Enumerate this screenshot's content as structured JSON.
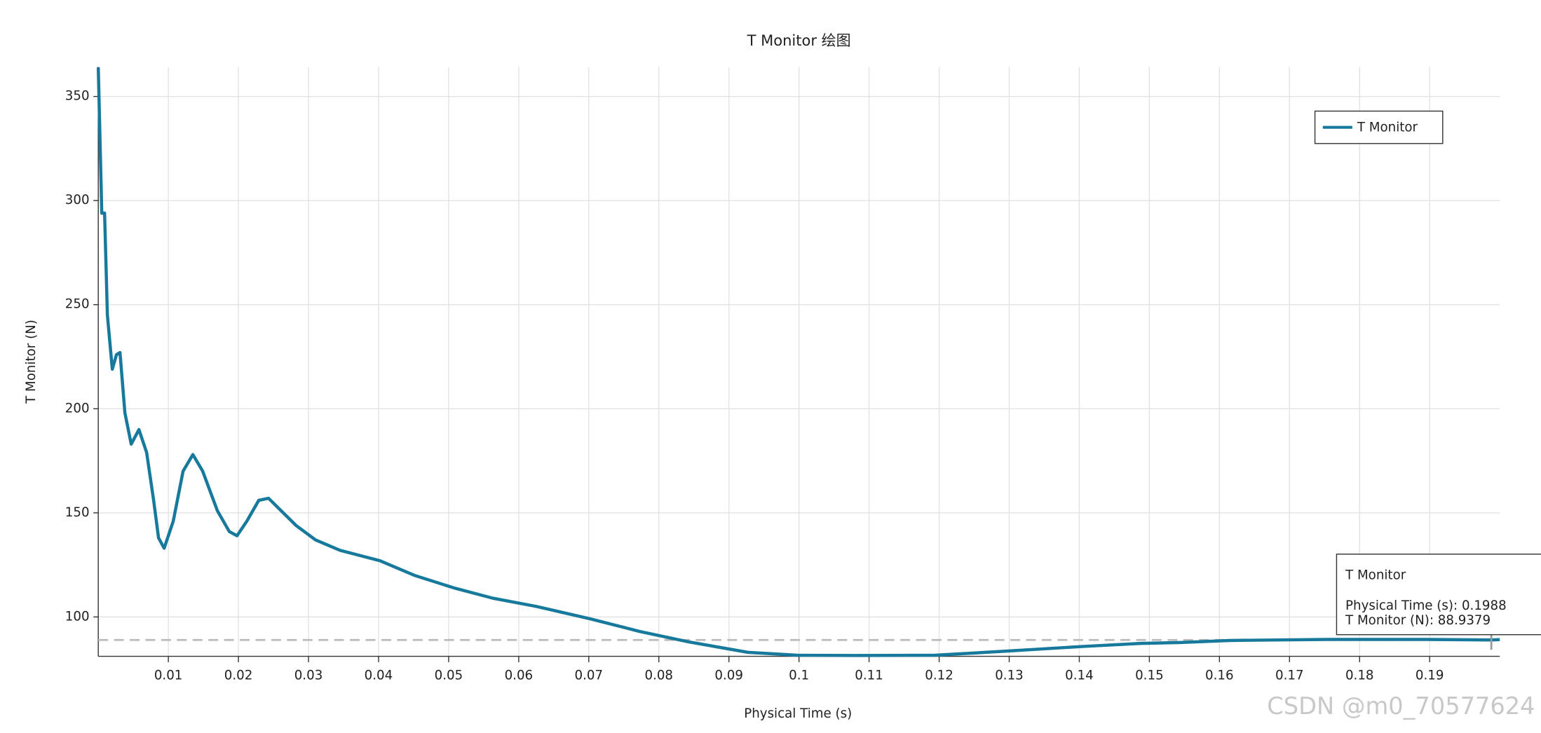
{
  "chart_data": {
    "type": "line",
    "title": "T Monitor 绘图",
    "xlabel": "Physical Time (s)",
    "ylabel": "T Monitor (N)",
    "xlim": [
      0,
      0.2
    ],
    "ylim": [
      81.1,
      364.2
    ],
    "xticks": [
      0.01,
      0.02,
      0.03,
      0.04,
      0.05,
      0.06,
      0.07,
      0.08,
      0.09,
      0.1,
      0.11,
      0.12,
      0.13,
      0.14,
      0.15,
      0.16,
      0.17,
      0.18,
      0.19
    ],
    "yticks": [
      100,
      150,
      200,
      250,
      300,
      350
    ],
    "grid": true,
    "legend": "upper right",
    "x": [
      0,
      0.0005,
      0.0009,
      0.0013,
      0.002,
      0.0026,
      0.0031,
      0.0038,
      0.0047,
      0.0058,
      0.0069,
      0.0079,
      0.0086,
      0.0094,
      0.0107,
      0.0121,
      0.0135,
      0.0149,
      0.017,
      0.0187,
      0.0198,
      0.0212,
      0.0229,
      0.0243,
      0.0261,
      0.0282,
      0.031,
      0.0345,
      0.0402,
      0.0451,
      0.0507,
      0.0563,
      0.0626,
      0.0703,
      0.0773,
      0.0843,
      0.0927,
      0.0997,
      0.1081,
      0.1194,
      0.1292,
      0.1404,
      0.1488,
      0.1544,
      0.1614,
      0.1754,
      0.1895,
      0.1988,
      0.2
    ],
    "series": [
      {
        "name": "T Monitor",
        "color": "#17799b",
        "values": [
          364,
          293.9,
          294,
          245,
          219,
          226,
          227,
          198,
          183,
          190,
          179,
          156,
          138,
          133,
          146,
          170,
          178,
          170,
          151,
          141,
          139,
          146,
          156,
          157,
          151,
          144,
          137,
          132,
          127,
          120,
          114,
          109,
          105,
          99,
          93,
          88,
          83,
          81.6,
          81.5,
          81.6,
          83.5,
          85.8,
          87.3,
          87.7,
          88.7,
          89.2,
          89.2,
          88.9379,
          89.1
        ]
      }
    ],
    "tooltip": {
      "x": 0.1988,
      "y": 88.9379,
      "title": "T Monitor",
      "lines": [
        "Physical Time (s): 0.1988",
        "T Monitor (N): 88.9379"
      ]
    },
    "watermark": "CSDN @m0_70577624"
  }
}
